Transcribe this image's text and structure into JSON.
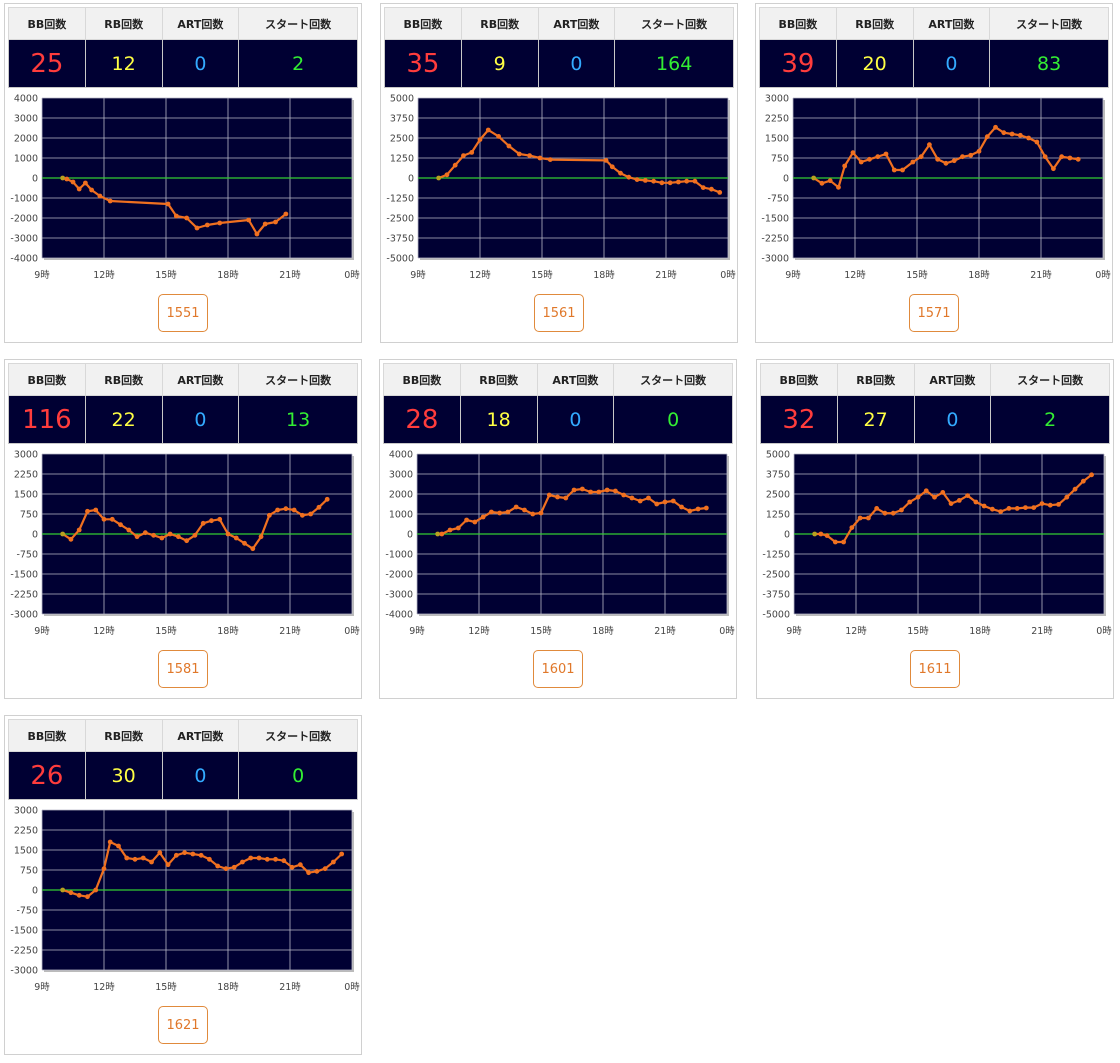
{
  "headers": {
    "bb": "BB回数",
    "rb": "RB回数",
    "art": "ART回数",
    "start": "スタート回数"
  },
  "colors": {
    "bb": "#ff3c3c",
    "rb": "#ffff44",
    "art": "#33aaff",
    "start": "#33ee33",
    "plot_bg": "#000033",
    "line": "#f07020",
    "zero_line": "#33cc33"
  },
  "x_ticks": [
    "9時",
    "12時",
    "15時",
    "18時",
    "21時",
    "0時"
  ],
  "machines": [
    {
      "id": "1551",
      "bb": "25",
      "rb": "12",
      "art": "0",
      "start": "2",
      "chart_data": {
        "type": "line",
        "ylim": [
          -4000,
          4000
        ],
        "y_ticks": [
          "4000",
          "3000",
          "2000",
          "1000",
          "0",
          "-1000",
          "-2000",
          "-3000",
          "-4000"
        ],
        "series": [
          {
            "x": [
              10,
              10.2,
              10.5,
              10.8,
              11.1,
              11.4,
              11.8,
              12.3,
              15.1,
              15.5,
              16,
              16.5,
              17,
              17.6,
              19,
              19.4,
              19.8,
              20.3,
              20.8
            ],
            "y": [
              0,
              -50,
              -200,
              -550,
              -250,
              -600,
              -900,
              -1150,
              -1300,
              -1900,
              -2000,
              -2500,
              -2350,
              -2250,
              -2100,
              -2800,
              -2300,
              -2200,
              -1800
            ]
          }
        ]
      }
    },
    {
      "id": "1561",
      "bb": "35",
      "rb": "9",
      "art": "0",
      "start": "164",
      "chart_data": {
        "type": "line",
        "ylim": [
          -5000,
          5000
        ],
        "y_ticks": [
          "5000",
          "3750",
          "2500",
          "1250",
          "0",
          "-1250",
          "-2500",
          "-3750",
          "-5000"
        ],
        "series": [
          {
            "x": [
              10,
              10.4,
              10.8,
              11.2,
              11.6,
              12,
              12.4,
              12.9,
              13.4,
              13.9,
              14.4,
              14.9,
              15.4,
              18.1,
              18.4,
              18.8,
              19.2,
              19.6,
              20,
              20.4,
              20.8,
              21.2,
              21.6,
              22,
              22.4,
              22.8,
              23.2,
              23.6
            ],
            "y": [
              0,
              200,
              800,
              1400,
              1600,
              2400,
              3000,
              2600,
              2000,
              1500,
              1400,
              1250,
              1150,
              1100,
              700,
              300,
              50,
              -100,
              -150,
              -200,
              -300,
              -300,
              -250,
              -200,
              -200,
              -600,
              -700,
              -900
            ]
          }
        ]
      }
    },
    {
      "id": "1571",
      "bb": "39",
      "rb": "20",
      "art": "0",
      "start": "83",
      "chart_data": {
        "type": "line",
        "ylim": [
          -3000,
          3000
        ],
        "y_ticks": [
          "3000",
          "2250",
          "1500",
          "750",
          "0",
          "-750",
          "-1500",
          "-2250",
          "-3000"
        ],
        "series": [
          {
            "x": [
              10,
              10.4,
              10.8,
              11.2,
              11.5,
              11.9,
              12.3,
              12.7,
              13.1,
              13.5,
              13.9,
              14.3,
              14.8,
              15.2,
              15.6,
              16,
              16.4,
              16.8,
              17.2,
              17.6,
              18,
              18.4,
              18.8,
              19.2,
              19.6,
              20,
              20.4,
              20.8,
              21.2,
              21.6,
              22,
              22.4,
              22.8
            ],
            "y": [
              0,
              -200,
              -100,
              -350,
              450,
              950,
              600,
              700,
              800,
              900,
              300,
              300,
              600,
              800,
              1250,
              700,
              550,
              650,
              800,
              850,
              1000,
              1550,
              1900,
              1700,
              1650,
              1600,
              1500,
              1350,
              800,
              350,
              800,
              750,
              700
            ]
          }
        ]
      }
    },
    {
      "id": "1581",
      "bb": "116",
      "rb": "22",
      "art": "0",
      "start": "13",
      "chart_data": {
        "type": "line",
        "ylim": [
          -3000,
          3000
        ],
        "y_ticks": [
          "3000",
          "2250",
          "1500",
          "750",
          "0",
          "-750",
          "-1500",
          "-2250",
          "-3000"
        ],
        "series": [
          {
            "x": [
              10,
              10.4,
              10.8,
              11.2,
              11.6,
              12,
              12.4,
              12.8,
              13.2,
              13.6,
              14,
              14.4,
              14.8,
              15.2,
              15.6,
              16,
              16.4,
              16.8,
              17.2,
              17.6,
              18,
              18.4,
              18.8,
              19.2,
              19.6,
              20,
              20.4,
              20.8,
              21.2,
              21.6,
              22,
              22.4,
              22.8
            ],
            "y": [
              0,
              -200,
              150,
              850,
              900,
              550,
              550,
              350,
              150,
              -100,
              50,
              -50,
              -150,
              0,
              -100,
              -250,
              -50,
              400,
              500,
              550,
              0,
              -150,
              -350,
              -550,
              -100,
              700,
              900,
              950,
              900,
              700,
              750,
              1000,
              1300
            ]
          }
        ]
      }
    },
    {
      "id": "1601",
      "bb": "28",
      "rb": "18",
      "art": "0",
      "start": "0",
      "chart_data": {
        "type": "line",
        "ylim": [
          -4000,
          4000
        ],
        "y_ticks": [
          "4000",
          "3000",
          "2000",
          "1000",
          "0",
          "-1000",
          "-2000",
          "-3000",
          "-4000"
        ],
        "series": [
          {
            "x": [
              10,
              10.2,
              10.6,
              11,
              11.4,
              11.8,
              12.2,
              12.6,
              13,
              13.4,
              13.8,
              14.2,
              14.6,
              15,
              15.4,
              15.8,
              16.2,
              16.6,
              17,
              17.4,
              17.8,
              18.2,
              18.6,
              19,
              19.4,
              19.8,
              20.2,
              20.6,
              21,
              21.4,
              21.8,
              22.2,
              22.6,
              23
            ],
            "y": [
              0,
              0,
              200,
              300,
              700,
              600,
              850,
              1100,
              1050,
              1100,
              1350,
              1200,
              1000,
              1050,
              1950,
              1850,
              1800,
              2200,
              2250,
              2100,
              2100,
              2200,
              2150,
              1950,
              1800,
              1650,
              1800,
              1500,
              1600,
              1650,
              1350,
              1150,
              1250,
              1300
            ]
          }
        ]
      }
    },
    {
      "id": "1611",
      "bb": "32",
      "rb": "27",
      "art": "0",
      "start": "2",
      "chart_data": {
        "type": "line",
        "ylim": [
          -5000,
          5000
        ],
        "y_ticks": [
          "5000",
          "3750",
          "2500",
          "1250",
          "0",
          "-1250",
          "-2500",
          "-3750",
          "-5000"
        ],
        "series": [
          {
            "x": [
              10,
              10.3,
              10.6,
              11,
              11.4,
              11.8,
              12.2,
              12.6,
              13,
              13.4,
              13.8,
              14.2,
              14.6,
              15,
              15.4,
              15.8,
              16.2,
              16.6,
              17,
              17.4,
              17.8,
              18.2,
              18.6,
              19,
              19.4,
              19.8,
              20.2,
              20.6,
              21,
              21.4,
              21.8,
              22.2,
              22.6,
              23,
              23.4
            ],
            "y": [
              0,
              0,
              -100,
              -500,
              -500,
              400,
              1000,
              1000,
              1600,
              1300,
              1300,
              1500,
              2000,
              2300,
              2700,
              2300,
              2600,
              1900,
              2100,
              2400,
              2000,
              1750,
              1550,
              1400,
              1600,
              1600,
              1650,
              1650,
              1900,
              1800,
              1850,
              2300,
              2800,
              3300,
              3700
            ]
          }
        ]
      }
    },
    {
      "id": "1621",
      "bb": "26",
      "rb": "30",
      "art": "0",
      "start": "0",
      "chart_data": {
        "type": "line",
        "ylim": [
          -3000,
          3000
        ],
        "y_ticks": [
          "3000",
          "2250",
          "1500",
          "750",
          "0",
          "-750",
          "-1500",
          "-2250",
          "-3000"
        ],
        "series": [
          {
            "x": [
              10,
              10.4,
              10.8,
              11.2,
              11.6,
              12,
              12.3,
              12.7,
              13.1,
              13.5,
              13.9,
              14.3,
              14.7,
              15.1,
              15.5,
              15.9,
              16.3,
              16.7,
              17.1,
              17.5,
              17.9,
              18.3,
              18.7,
              19.1,
              19.5,
              19.9,
              20.3,
              20.7,
              21.1,
              21.5,
              21.9,
              22.3,
              22.7,
              23.1,
              23.5
            ],
            "y": [
              0,
              -100,
              -200,
              -250,
              0,
              800,
              1800,
              1650,
              1200,
              1150,
              1200,
              1050,
              1400,
              950,
              1300,
              1400,
              1350,
              1300,
              1150,
              900,
              800,
              850,
              1050,
              1200,
              1200,
              1150,
              1150,
              1100,
              850,
              950,
              650,
              700,
              800,
              1050,
              1350
            ]
          }
        ]
      }
    }
  ]
}
